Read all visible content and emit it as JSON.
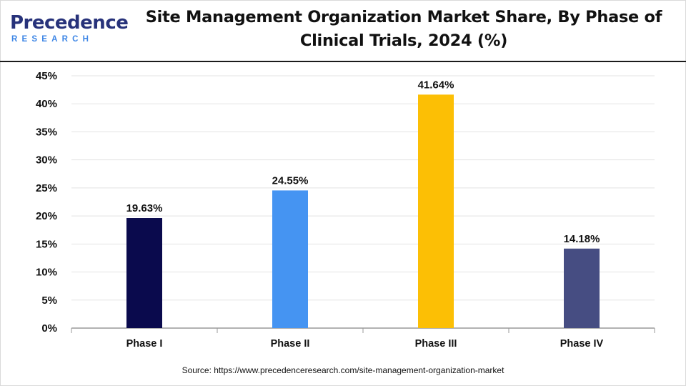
{
  "header": {
    "logo_main": "Precedence",
    "logo_sub": "RESEARCH",
    "title_line1": "Site Management Organization Market Share, By Phase of",
    "title_line2": "Clinical Trials, 2024 (%)"
  },
  "chart_data": {
    "type": "bar",
    "title": "Site Management Organization Market Share, By Phase of Clinical Trials, 2024 (%)",
    "categories": [
      "Phase I",
      "Phase II",
      "Phase III",
      "Phase IV"
    ],
    "values": [
      19.63,
      24.55,
      41.64,
      14.18
    ],
    "data_labels": [
      "19.63%",
      "24.55%",
      "41.64%",
      "14.18%"
    ],
    "colors": [
      "#0a0a4d",
      "#4594f2",
      "#fcbf05",
      "#464d82"
    ],
    "ylim": [
      0,
      45
    ],
    "yticks": [
      0,
      5,
      10,
      15,
      20,
      25,
      30,
      35,
      40,
      45
    ],
    "ytick_labels": [
      "0%",
      "5%",
      "10%",
      "15%",
      "20%",
      "25%",
      "30%",
      "35%",
      "40%",
      "45%"
    ],
    "grid": true,
    "legend": "none"
  },
  "footer": {
    "source_text": "Source: https://www.precedenceresearch.com/site-management-organization-market"
  }
}
